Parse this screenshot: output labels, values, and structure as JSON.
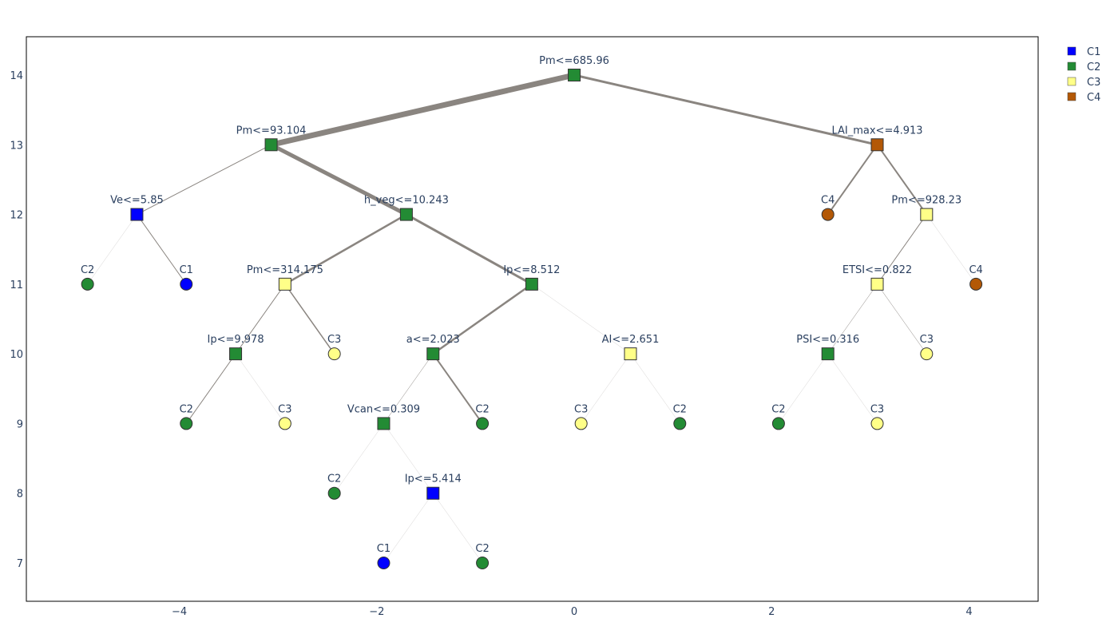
{
  "chart_data": {
    "type": "scatter",
    "subtype": "decision-tree",
    "title": "",
    "xlabel": "",
    "ylabel": "",
    "xlim": [
      -5.55,
      4.7
    ],
    "ylim": [
      6.45,
      14.55
    ],
    "grid": false,
    "legend_position": "top-right",
    "x_ticks": [
      -4,
      -2,
      0,
      2,
      4
    ],
    "x_tick_labels": [
      "−4",
      "−2",
      "0",
      "2",
      "4"
    ],
    "y_ticks": [
      7,
      8,
      9,
      10,
      11,
      12,
      13,
      14
    ],
    "y_tick_labels": [
      "7",
      "8",
      "9",
      "10",
      "11",
      "12",
      "13",
      "14"
    ],
    "class_colors": {
      "C1": "#0000ff",
      "C2": "#238b34",
      "C3": "#ffff88",
      "C4": "#b35806"
    },
    "legend": [
      {
        "name": "C1",
        "color": "#0000ff"
      },
      {
        "name": "C2",
        "color": "#238b34"
      },
      {
        "name": "C3",
        "color": "#ffff88"
      },
      {
        "name": "C4",
        "color": "#b35806"
      }
    ],
    "edge_color": "#8a8580",
    "nodes": [
      {
        "id": "n0",
        "x": 0.0,
        "y": 14,
        "label": "Pm<=685.96",
        "cls": "C2",
        "shape": "square"
      },
      {
        "id": "n1",
        "x": -3.07,
        "y": 13,
        "label": "Pm<=93.104",
        "cls": "C2",
        "shape": "square"
      },
      {
        "id": "n2",
        "x": 3.07,
        "y": 13,
        "label": "LAI_max<=4.913",
        "cls": "C4",
        "shape": "square"
      },
      {
        "id": "n3",
        "x": -4.43,
        "y": 12,
        "label": "Ve<=5.85",
        "cls": "C1",
        "shape": "square"
      },
      {
        "id": "n4",
        "x": -1.7,
        "y": 12,
        "label": "h_veg<=10.243",
        "cls": "C2",
        "shape": "square"
      },
      {
        "id": "n5",
        "x": 2.57,
        "y": 12,
        "label": "C4",
        "cls": "C4",
        "shape": "circle"
      },
      {
        "id": "n6",
        "x": 3.57,
        "y": 12,
        "label": "Pm<=928.23",
        "cls": "C3",
        "shape": "square"
      },
      {
        "id": "n7",
        "x": -4.93,
        "y": 11,
        "label": "C2",
        "cls": "C2",
        "shape": "circle"
      },
      {
        "id": "n8",
        "x": -3.93,
        "y": 11,
        "label": "C1",
        "cls": "C1",
        "shape": "circle"
      },
      {
        "id": "n9",
        "x": -2.93,
        "y": 11,
        "label": "Pm<=314.175",
        "cls": "C3",
        "shape": "square"
      },
      {
        "id": "n10",
        "x": -0.43,
        "y": 11,
        "label": "Ip<=8.512",
        "cls": "C2",
        "shape": "square"
      },
      {
        "id": "n11",
        "x": 3.07,
        "y": 11,
        "label": "ETSI<=0.822",
        "cls": "C3",
        "shape": "square"
      },
      {
        "id": "n12",
        "x": 4.07,
        "y": 11,
        "label": "C4",
        "cls": "C4",
        "shape": "circle"
      },
      {
        "id": "n13",
        "x": -3.43,
        "y": 10,
        "label": "Ip<=9.978",
        "cls": "C2",
        "shape": "square"
      },
      {
        "id": "n14",
        "x": -2.43,
        "y": 10,
        "label": "C3",
        "cls": "C3",
        "shape": "circle"
      },
      {
        "id": "n15",
        "x": -1.43,
        "y": 10,
        "label": "a<=2.023",
        "cls": "C2",
        "shape": "square"
      },
      {
        "id": "n16",
        "x": 0.57,
        "y": 10,
        "label": "AI<=2.651",
        "cls": "C3",
        "shape": "square"
      },
      {
        "id": "n17",
        "x": 2.57,
        "y": 10,
        "label": "PSI<=0.316",
        "cls": "C2",
        "shape": "square"
      },
      {
        "id": "n18",
        "x": 3.57,
        "y": 10,
        "label": "C3",
        "cls": "C3",
        "shape": "circle"
      },
      {
        "id": "n19",
        "x": -3.93,
        "y": 9,
        "label": "C2",
        "cls": "C2",
        "shape": "circle"
      },
      {
        "id": "n20",
        "x": -2.93,
        "y": 9,
        "label": "C3",
        "cls": "C3",
        "shape": "circle"
      },
      {
        "id": "n21",
        "x": -1.93,
        "y": 9,
        "label": "Vcan<=0.309",
        "cls": "C2",
        "shape": "square"
      },
      {
        "id": "n22",
        "x": -0.93,
        "y": 9,
        "label": "C2",
        "cls": "C2",
        "shape": "circle"
      },
      {
        "id": "n23",
        "x": 0.07,
        "y": 9,
        "label": "C3",
        "cls": "C3",
        "shape": "circle"
      },
      {
        "id": "n24",
        "x": 1.07,
        "y": 9,
        "label": "C2",
        "cls": "C2",
        "shape": "circle"
      },
      {
        "id": "n25",
        "x": 2.07,
        "y": 9,
        "label": "C2",
        "cls": "C2",
        "shape": "circle"
      },
      {
        "id": "n26",
        "x": 3.07,
        "y": 9,
        "label": "C3",
        "cls": "C3",
        "shape": "circle"
      },
      {
        "id": "n27",
        "x": -2.43,
        "y": 8,
        "label": "C2",
        "cls": "C2",
        "shape": "circle"
      },
      {
        "id": "n28",
        "x": -1.43,
        "y": 8,
        "label": "Ip<=5.414",
        "cls": "C1",
        "shape": "square"
      },
      {
        "id": "n29",
        "x": -1.93,
        "y": 7,
        "label": "C1",
        "cls": "C1",
        "shape": "circle"
      },
      {
        "id": "n30",
        "x": -0.93,
        "y": 7,
        "label": "C2",
        "cls": "C2",
        "shape": "circle"
      }
    ],
    "edges": [
      {
        "from": "n0",
        "to": "n1",
        "weight": 7
      },
      {
        "from": "n0",
        "to": "n2",
        "weight": 3
      },
      {
        "from": "n1",
        "to": "n3",
        "weight": 1
      },
      {
        "from": "n1",
        "to": "n4",
        "weight": 5
      },
      {
        "from": "n2",
        "to": "n5",
        "weight": 2
      },
      {
        "from": "n2",
        "to": "n6",
        "weight": 2
      },
      {
        "from": "n3",
        "to": "n7",
        "weight": 0.2
      },
      {
        "from": "n3",
        "to": "n8",
        "weight": 1
      },
      {
        "from": "n4",
        "to": "n9",
        "weight": 2.5
      },
      {
        "from": "n4",
        "to": "n10",
        "weight": 3
      },
      {
        "from": "n6",
        "to": "n11",
        "weight": 1
      },
      {
        "from": "n6",
        "to": "n12",
        "weight": 0.4
      },
      {
        "from": "n9",
        "to": "n13",
        "weight": 1
      },
      {
        "from": "n9",
        "to": "n14",
        "weight": 1.5
      },
      {
        "from": "n10",
        "to": "n15",
        "weight": 2.5
      },
      {
        "from": "n10",
        "to": "n16",
        "weight": 0.3
      },
      {
        "from": "n11",
        "to": "n17",
        "weight": 0.5
      },
      {
        "from": "n11",
        "to": "n18",
        "weight": 0.5
      },
      {
        "from": "n13",
        "to": "n19",
        "weight": 1
      },
      {
        "from": "n13",
        "to": "n20",
        "weight": 0.2
      },
      {
        "from": "n15",
        "to": "n21",
        "weight": 0.5
      },
      {
        "from": "n15",
        "to": "n22",
        "weight": 2
      },
      {
        "from": "n16",
        "to": "n23",
        "weight": 0.2
      },
      {
        "from": "n16",
        "to": "n24",
        "weight": 0.2
      },
      {
        "from": "n17",
        "to": "n25",
        "weight": 0.3
      },
      {
        "from": "n17",
        "to": "n26",
        "weight": 0.2
      },
      {
        "from": "n21",
        "to": "n27",
        "weight": 0.3
      },
      {
        "from": "n21",
        "to": "n28",
        "weight": 0.3
      },
      {
        "from": "n28",
        "to": "n29",
        "weight": 0.2
      },
      {
        "from": "n28",
        "to": "n30",
        "weight": 0.2
      }
    ]
  }
}
